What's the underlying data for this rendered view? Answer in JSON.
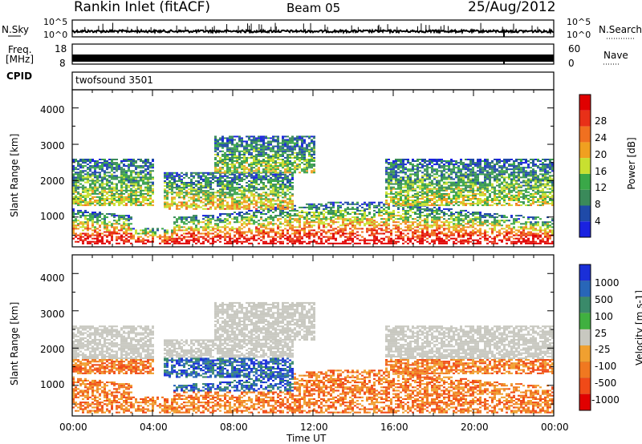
{
  "header": {
    "station": "Rankin Inlet (fitACF)",
    "beam": "Beam 05",
    "date": "25/Aug/2012"
  },
  "noise_panel": {
    "left_label": "N.Sky",
    "right_label": "N.Search",
    "left_ticks": [
      "10^5",
      "10^0"
    ],
    "right_ticks": [
      "10^5",
      "10^0"
    ]
  },
  "freq_panel": {
    "left_label_line1": "Freq.",
    "left_label_line2": "[MHz]",
    "left_ticks": [
      "18",
      "8"
    ],
    "right_label": "Nave",
    "right_ticks": [
      "60",
      "0"
    ]
  },
  "cpid_panel": {
    "label": "CPID",
    "program": "twofsound 3501"
  },
  "colors": {
    "power_scale": [
      "#1a22e0",
      "#1f4aa8",
      "#3a8a5a",
      "#3aa848",
      "#c8e030",
      "#f0a020",
      "#f07020",
      "#e83018",
      "#e00000"
    ],
    "velocity_scale": [
      "#1a2fd8",
      "#2866b8",
      "#3a8a6a",
      "#40b040",
      "#c8c8c0",
      "#f0a030",
      "#f07820",
      "#f04a18",
      "#e00000"
    ]
  },
  "chart_data": [
    {
      "type": "heatmap",
      "name": "power",
      "xlabel": "Time UT",
      "ylabel": "Slant Range [km]",
      "xlim": [
        0,
        24
      ],
      "ylim": [
        180,
        4500
      ],
      "yticks": [
        "1000",
        "2000",
        "3000",
        "4000"
      ],
      "colorbar_label": "Power [dB]",
      "colorbar_ticks": [
        "4",
        "8",
        "12",
        "16",
        "20",
        "24",
        "28"
      ],
      "colorbar_range": [
        0,
        32
      ]
    },
    {
      "type": "heatmap",
      "name": "velocity",
      "xlabel": "Time UT",
      "ylabel": "Slant Range [km]",
      "xlim": [
        0,
        24
      ],
      "ylim": [
        180,
        4500
      ],
      "xticks": [
        "00:00",
        "04:00",
        "08:00",
        "12:00",
        "16:00",
        "20:00",
        "00:00"
      ],
      "yticks": [
        "1000",
        "2000",
        "3000",
        "4000"
      ],
      "colorbar_label": "Velocity [m s-1]",
      "colorbar_ticks": [
        "1000",
        "500",
        "100",
        "25",
        "-25",
        "-100",
        "-500",
        "-1000"
      ]
    }
  ]
}
